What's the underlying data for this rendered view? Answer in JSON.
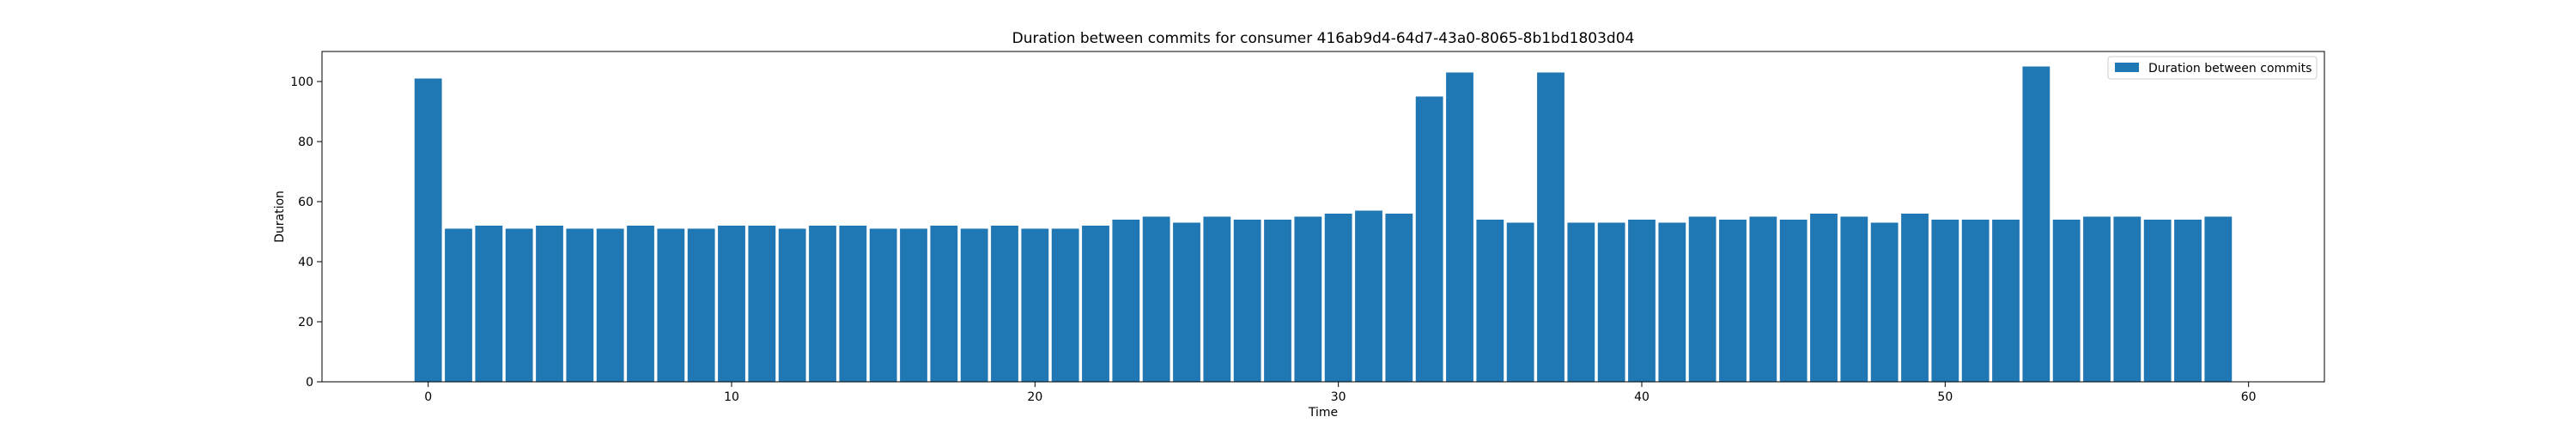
{
  "chart_data": {
    "type": "bar",
    "title": "Duration between commits for consumer 416ab9d4-64d7-43a0-8065-8b1bd1803d04",
    "xlabel": "Time",
    "ylabel": "Duration",
    "xlim": [
      -3.5,
      62.5
    ],
    "ylim": [
      0,
      110
    ],
    "xticks": [
      0,
      10,
      20,
      30,
      40,
      50,
      60
    ],
    "yticks": [
      0,
      20,
      40,
      60,
      80,
      100
    ],
    "grid": false,
    "legend_position": "upper-right",
    "bar_width": 0.9,
    "series": [
      {
        "name": "Duration between commits",
        "color": "#1f77b4",
        "x": [
          0,
          1,
          2,
          3,
          4,
          5,
          6,
          7,
          8,
          9,
          10,
          11,
          12,
          13,
          14,
          15,
          16,
          17,
          18,
          19,
          20,
          21,
          22,
          23,
          24,
          25,
          26,
          27,
          28,
          29,
          30,
          31,
          32,
          33,
          34,
          35,
          36,
          37,
          38,
          39,
          40,
          41,
          42,
          43,
          44,
          45,
          46,
          47,
          48,
          49,
          50,
          51,
          52,
          53,
          54,
          55,
          56,
          57,
          58,
          59
        ],
        "values": [
          101,
          51,
          52,
          51,
          52,
          51,
          51,
          52,
          51,
          51,
          52,
          52,
          51,
          52,
          52,
          51,
          51,
          52,
          51,
          52,
          51,
          51,
          52,
          54,
          55,
          53,
          55,
          54,
          54,
          55,
          56,
          57,
          56,
          95,
          103,
          54,
          53,
          103,
          53,
          53,
          54,
          53,
          55,
          54,
          55,
          54,
          56,
          55,
          53,
          56,
          54,
          54,
          54,
          105,
          54,
          55,
          55,
          54,
          54,
          55
        ]
      }
    ]
  }
}
